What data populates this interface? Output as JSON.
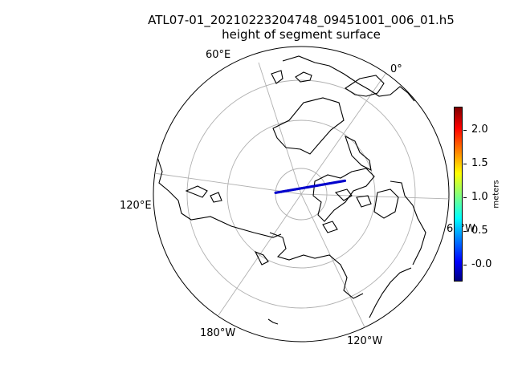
{
  "title": {
    "line1": "ATL07-01_20210223204748_09451001_006_01.h5",
    "line2": "height of segment surface"
  },
  "map": {
    "projection": "north-polar-orthographic",
    "graticule": true,
    "longitude_labels": [
      "60°E",
      "0°",
      "120°E",
      "60°W",
      "180°W",
      "120°W"
    ],
    "coastline_color": "#000000",
    "gridline_color": "#b0b0b0"
  },
  "chart_data": {
    "type": "scatter",
    "series_color": "#0000cc",
    "track": {
      "start": {
        "lon": -145,
        "lat": 72
      },
      "end": {
        "lon": 15,
        "lat": 80
      }
    },
    "value_range": "approximately -0.1 to 0.1 m (mostly near 0)"
  },
  "colorbar": {
    "label": "meters",
    "ticks": [
      "-0.0",
      "0.5",
      "1.0",
      "1.5",
      "2.0"
    ],
    "tick_values": [
      0.0,
      0.5,
      1.0,
      1.5,
      2.0
    ],
    "min": -0.25,
    "max": 2.35,
    "colormap": "jet"
  }
}
